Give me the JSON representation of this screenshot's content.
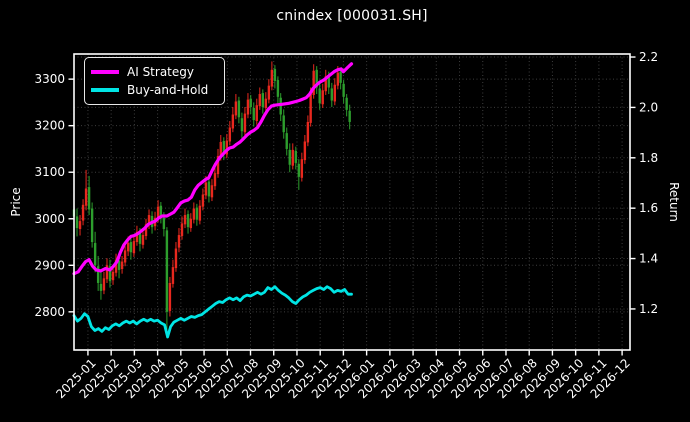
{
  "chart_data": {
    "type": "candlestick",
    "title": "cnindex [000031.SH]",
    "ylabel_left": "Price",
    "ylabel_right": "Return",
    "grid": true,
    "legend_position": "upper-left",
    "legend": [
      {
        "label": "AI Strategy",
        "color": "#ff00ff"
      },
      {
        "label": "Buy-and-Hold",
        "color": "#00e5e5"
      }
    ],
    "colors": {
      "background": "#000000",
      "text": "#ffffff",
      "axis": "#ffffff",
      "grid": "#3d3d3d",
      "candle_up": "#e8281e",
      "candle_down": "#2d9e2d",
      "ai_line": "#ff00ff",
      "bh_line": "#00e5e5"
    },
    "x_tick_labels": [
      "2025-01",
      "2025-02",
      "2025-03",
      "2025-04",
      "2025-05",
      "2025-06",
      "2025-07",
      "2025-08",
      "2025-09",
      "2025-10",
      "2025-11",
      "2025-12",
      "2026-01",
      "2026-02",
      "2026-03",
      "2026-04",
      "2026-05",
      "2026-06",
      "2026-07",
      "2026-08",
      "2026-09",
      "2026-10",
      "2026-11",
      "2026-12"
    ],
    "x_range": [
      -0.6,
      23.34
    ],
    "y_left_ticks": [
      2800,
      2900,
      3000,
      3100,
      3200,
      3300
    ],
    "y_left_range": [
      2718,
      3354
    ],
    "y_right_ticks": [
      {
        "v": 1.2,
        "label": "1.2"
      },
      {
        "v": 1.4,
        "label": "1.4"
      },
      {
        "v": 1.6,
        "label": "1.6"
      },
      {
        "v": 1.8,
        "label": "1.8"
      },
      {
        "v": 2.0,
        "label": "2.0"
      },
      {
        "v": 2.2,
        "label": "2.2"
      }
    ],
    "y_right_range": [
      1.037,
      2.212
    ],
    "candles": [
      [
        -0.6,
        3020,
        3040,
        2988,
        3005
      ],
      [
        -0.47,
        3005,
        3022,
        2962,
        2980
      ],
      [
        -0.34,
        2978,
        3008,
        2964,
        2995
      ],
      [
        -0.21,
        2996,
        3042,
        2986,
        3030
      ],
      [
        -0.08,
        3028,
        3105,
        3018,
        3065
      ],
      [
        0.05,
        3068,
        3092,
        3008,
        3020
      ],
      [
        0.18,
        3022,
        3035,
        2938,
        2950
      ],
      [
        0.31,
        2948,
        2972,
        2885,
        2900
      ],
      [
        0.44,
        2898,
        2920,
        2845,
        2862
      ],
      [
        0.56,
        2860,
        2885,
        2826,
        2845
      ],
      [
        0.69,
        2846,
        2886,
        2838,
        2872
      ],
      [
        0.82,
        2870,
        2915,
        2862,
        2900
      ],
      [
        0.95,
        2898,
        2912,
        2852,
        2866
      ],
      [
        1.08,
        2868,
        2898,
        2858,
        2886
      ],
      [
        1.21,
        2884,
        2925,
        2876,
        2912
      ],
      [
        1.34,
        2910,
        2922,
        2872,
        2890
      ],
      [
        1.47,
        2892,
        2920,
        2882,
        2908
      ],
      [
        1.6,
        2906,
        2945,
        2898,
        2932
      ],
      [
        1.73,
        2930,
        2962,
        2920,
        2948
      ],
      [
        1.85,
        2950,
        2958,
        2912,
        2928
      ],
      [
        1.98,
        2926,
        2962,
        2918,
        2952
      ],
      [
        2.11,
        2950,
        2985,
        2942,
        2972
      ],
      [
        2.24,
        2970,
        2980,
        2930,
        2946
      ],
      [
        2.37,
        2944,
        2978,
        2936,
        2965
      ],
      [
        2.5,
        2963,
        3000,
        2955,
        2988
      ],
      [
        2.63,
        2986,
        3020,
        2978,
        3008
      ],
      [
        2.76,
        3006,
        3016,
        2968,
        2982
      ],
      [
        2.89,
        2984,
        3015,
        2975,
        3002
      ],
      [
        3.02,
        3000,
        3040,
        2992,
        3026
      ],
      [
        3.14,
        3028,
        3036,
        2990,
        3004
      ],
      [
        3.27,
        3002,
        3014,
        2962,
        2978
      ],
      [
        3.4,
        2975,
        2982,
        2745,
        2800
      ],
      [
        3.53,
        2802,
        2875,
        2790,
        2862
      ],
      [
        3.66,
        2860,
        2912,
        2852,
        2896
      ],
      [
        3.79,
        2894,
        2950,
        2886,
        2936
      ],
      [
        3.92,
        2938,
        2980,
        2928,
        2965
      ],
      [
        4.05,
        2963,
        3005,
        2955,
        2990
      ],
      [
        4.18,
        2988,
        3022,
        2980,
        3008
      ],
      [
        4.31,
        3010,
        3018,
        2968,
        2982
      ],
      [
        4.43,
        2980,
        3012,
        2972,
        3000
      ],
      [
        4.56,
        2998,
        3035,
        2990,
        3022
      ],
      [
        4.69,
        3024,
        3032,
        2985,
        2998
      ],
      [
        4.82,
        2996,
        3040,
        2988,
        3028
      ],
      [
        4.95,
        3026,
        3065,
        3018,
        3052
      ],
      [
        5.08,
        3050,
        3092,
        3042,
        3078
      ],
      [
        5.21,
        3080,
        3088,
        3035,
        3048
      ],
      [
        5.34,
        3046,
        3085,
        3038,
        3072
      ],
      [
        5.47,
        3070,
        3112,
        3062,
        3098
      ],
      [
        5.6,
        3096,
        3150,
        3088,
        3135
      ],
      [
        5.72,
        3133,
        3180,
        3125,
        3165
      ],
      [
        5.85,
        3167,
        3175,
        3126,
        3140
      ],
      [
        5.98,
        3138,
        3182,
        3130,
        3168
      ],
      [
        6.11,
        3166,
        3210,
        3158,
        3196
      ],
      [
        6.24,
        3194,
        3240,
        3186,
        3224
      ],
      [
        6.37,
        3222,
        3268,
        3214,
        3252
      ],
      [
        6.5,
        3254,
        3262,
        3205,
        3218
      ],
      [
        6.63,
        3216,
        3228,
        3172,
        3188
      ],
      [
        6.76,
        3186,
        3240,
        3178,
        3226
      ],
      [
        6.89,
        3224,
        3270,
        3216,
        3256
      ],
      [
        7.01,
        3258,
        3266,
        3225,
        3240
      ],
      [
        7.14,
        3238,
        3250,
        3198,
        3212
      ],
      [
        7.27,
        3210,
        3258,
        3202,
        3244
      ],
      [
        7.4,
        3242,
        3282,
        3234,
        3268
      ],
      [
        7.53,
        3270,
        3278,
        3226,
        3240
      ],
      [
        7.66,
        3238,
        3272,
        3230,
        3258
      ],
      [
        7.79,
        3256,
        3300,
        3248,
        3286
      ],
      [
        7.92,
        3284,
        3338,
        3276,
        3320
      ],
      [
        8.05,
        3322,
        3330,
        3280,
        3296
      ],
      [
        8.18,
        3298,
        3306,
        3248,
        3262
      ],
      [
        8.3,
        3260,
        3270,
        3210,
        3224
      ],
      [
        8.43,
        3222,
        3235,
        3172,
        3186
      ],
      [
        8.56,
        3184,
        3196,
        3136,
        3150
      ],
      [
        8.69,
        3148,
        3162,
        3100,
        3116
      ],
      [
        8.82,
        3114,
        3162,
        3106,
        3148
      ],
      [
        8.95,
        3146,
        3155,
        3106,
        3120
      ],
      [
        9.08,
        3118,
        3128,
        3062,
        3090
      ],
      [
        9.21,
        3088,
        3142,
        3080,
        3128
      ],
      [
        9.34,
        3126,
        3180,
        3118,
        3166
      ],
      [
        9.47,
        3164,
        3222,
        3156,
        3208
      ],
      [
        9.59,
        3206,
        3282,
        3198,
        3268
      ],
      [
        9.72,
        3266,
        3332,
        3258,
        3318
      ],
      [
        9.85,
        3320,
        3328,
        3268,
        3282
      ],
      [
        9.98,
        3280,
        3292,
        3234,
        3248
      ],
      [
        10.11,
        3246,
        3290,
        3238,
        3276
      ],
      [
        10.24,
        3274,
        3320,
        3266,
        3306
      ],
      [
        10.37,
        3308,
        3316,
        3268,
        3282
      ],
      [
        10.5,
        3280,
        3292,
        3240,
        3254
      ],
      [
        10.63,
        3252,
        3302,
        3244,
        3288
      ],
      [
        10.76,
        3286,
        3328,
        3278,
        3314
      ],
      [
        10.88,
        3316,
        3322,
        3278,
        3292
      ],
      [
        11.01,
        3290,
        3298,
        3248,
        3262
      ],
      [
        11.14,
        3260,
        3268,
        3220,
        3234
      ],
      [
        11.27,
        3232,
        3245,
        3192,
        3208
      ]
    ],
    "series": [
      {
        "name": "AI Strategy",
        "axis": "left",
        "color": "#ff00ff",
        "width": 3.2,
        "points": [
          [
            -0.6,
            2882
          ],
          [
            -0.42,
            2886
          ],
          [
            -0.25,
            2898
          ],
          [
            -0.1,
            2908
          ],
          [
            0.05,
            2912
          ],
          [
            0.2,
            2898
          ],
          [
            0.35,
            2890
          ],
          [
            0.55,
            2888
          ],
          [
            0.75,
            2893
          ],
          [
            0.95,
            2890
          ],
          [
            1.1,
            2898
          ],
          [
            1.25,
            2908
          ],
          [
            1.4,
            2928
          ],
          [
            1.55,
            2944
          ],
          [
            1.7,
            2954
          ],
          [
            1.85,
            2962
          ],
          [
            2.0,
            2964
          ],
          [
            2.15,
            2968
          ],
          [
            2.3,
            2974
          ],
          [
            2.45,
            2980
          ],
          [
            2.6,
            2988
          ],
          [
            2.75,
            2992
          ],
          [
            2.9,
            2995
          ],
          [
            3.05,
            3002
          ],
          [
            3.2,
            3006
          ],
          [
            3.4,
            3006
          ],
          [
            3.55,
            3010
          ],
          [
            3.7,
            3014
          ],
          [
            3.85,
            3024
          ],
          [
            4.0,
            3034
          ],
          [
            4.15,
            3038
          ],
          [
            4.3,
            3040
          ],
          [
            4.45,
            3046
          ],
          [
            4.6,
            3062
          ],
          [
            4.75,
            3072
          ],
          [
            4.9,
            3078
          ],
          [
            5.05,
            3084
          ],
          [
            5.2,
            3088
          ],
          [
            5.35,
            3104
          ],
          [
            5.5,
            3118
          ],
          [
            5.65,
            3130
          ],
          [
            5.8,
            3138
          ],
          [
            5.95,
            3146
          ],
          [
            6.1,
            3152
          ],
          [
            6.25,
            3154
          ],
          [
            6.4,
            3160
          ],
          [
            6.55,
            3165
          ],
          [
            6.7,
            3172
          ],
          [
            6.85,
            3180
          ],
          [
            7.0,
            3186
          ],
          [
            7.15,
            3190
          ],
          [
            7.3,
            3196
          ],
          [
            7.45,
            3208
          ],
          [
            7.6,
            3222
          ],
          [
            7.75,
            3234
          ],
          [
            7.9,
            3242
          ],
          [
            8.05,
            3244
          ],
          [
            8.2,
            3245
          ],
          [
            8.35,
            3246
          ],
          [
            8.5,
            3247
          ],
          [
            8.65,
            3248
          ],
          [
            8.8,
            3250
          ],
          [
            8.95,
            3252
          ],
          [
            9.1,
            3254
          ],
          [
            9.25,
            3257
          ],
          [
            9.4,
            3260
          ],
          [
            9.55,
            3268
          ],
          [
            9.7,
            3280
          ],
          [
            9.85,
            3288
          ],
          [
            10.0,
            3294
          ],
          [
            10.15,
            3298
          ],
          [
            10.3,
            3304
          ],
          [
            10.45,
            3310
          ],
          [
            10.6,
            3316
          ],
          [
            10.75,
            3320
          ],
          [
            10.9,
            3322
          ],
          [
            11.0,
            3316
          ],
          [
            11.1,
            3321
          ],
          [
            11.2,
            3326
          ],
          [
            11.35,
            3333
          ]
        ]
      },
      {
        "name": "Buy-and-Hold",
        "axis": "left",
        "color": "#00e5e5",
        "width": 2.8,
        "points": [
          [
            -0.6,
            2792
          ],
          [
            -0.45,
            2780
          ],
          [
            -0.3,
            2786
          ],
          [
            -0.15,
            2796
          ],
          [
            0.0,
            2790
          ],
          [
            0.15,
            2768
          ],
          [
            0.3,
            2760
          ],
          [
            0.45,
            2764
          ],
          [
            0.6,
            2758
          ],
          [
            0.75,
            2766
          ],
          [
            0.9,
            2762
          ],
          [
            1.05,
            2770
          ],
          [
            1.2,
            2774
          ],
          [
            1.35,
            2770
          ],
          [
            1.5,
            2776
          ],
          [
            1.65,
            2780
          ],
          [
            1.8,
            2776
          ],
          [
            1.95,
            2780
          ],
          [
            2.1,
            2774
          ],
          [
            2.25,
            2780
          ],
          [
            2.4,
            2784
          ],
          [
            2.55,
            2780
          ],
          [
            2.7,
            2784
          ],
          [
            2.85,
            2780
          ],
          [
            3.0,
            2782
          ],
          [
            3.15,
            2776
          ],
          [
            3.3,
            2772
          ],
          [
            3.43,
            2746
          ],
          [
            3.56,
            2768
          ],
          [
            3.7,
            2778
          ],
          [
            3.85,
            2782
          ],
          [
            4.0,
            2786
          ],
          [
            4.15,
            2782
          ],
          [
            4.3,
            2786
          ],
          [
            4.45,
            2790
          ],
          [
            4.6,
            2788
          ],
          [
            4.75,
            2792
          ],
          [
            4.9,
            2794
          ],
          [
            5.05,
            2800
          ],
          [
            5.2,
            2806
          ],
          [
            5.35,
            2812
          ],
          [
            5.5,
            2818
          ],
          [
            5.65,
            2822
          ],
          [
            5.8,
            2820
          ],
          [
            5.95,
            2826
          ],
          [
            6.1,
            2830
          ],
          [
            6.25,
            2826
          ],
          [
            6.4,
            2830
          ],
          [
            6.55,
            2824
          ],
          [
            6.7,
            2832
          ],
          [
            6.85,
            2836
          ],
          [
            7.0,
            2834
          ],
          [
            7.15,
            2838
          ],
          [
            7.3,
            2842
          ],
          [
            7.45,
            2838
          ],
          [
            7.6,
            2842
          ],
          [
            7.75,
            2852
          ],
          [
            7.9,
            2848
          ],
          [
            8.05,
            2854
          ],
          [
            8.2,
            2846
          ],
          [
            8.35,
            2840
          ],
          [
            8.5,
            2836
          ],
          [
            8.65,
            2830
          ],
          [
            8.8,
            2822
          ],
          [
            8.95,
            2818
          ],
          [
            9.1,
            2826
          ],
          [
            9.25,
            2832
          ],
          [
            9.4,
            2836
          ],
          [
            9.55,
            2842
          ],
          [
            9.7,
            2846
          ],
          [
            9.85,
            2850
          ],
          [
            10.0,
            2852
          ],
          [
            10.15,
            2848
          ],
          [
            10.3,
            2854
          ],
          [
            10.45,
            2850
          ],
          [
            10.6,
            2842
          ],
          [
            10.75,
            2846
          ],
          [
            10.9,
            2844
          ],
          [
            11.05,
            2848
          ],
          [
            11.2,
            2838
          ],
          [
            11.35,
            2838
          ]
        ]
      }
    ]
  }
}
